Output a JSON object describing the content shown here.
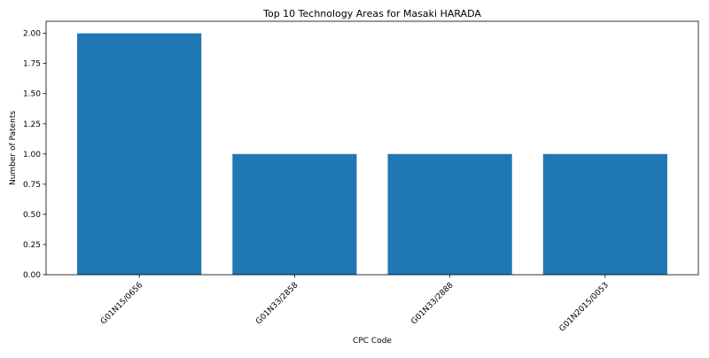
{
  "chart_data": {
    "type": "bar",
    "title": "Top 10 Technology Areas for Masaki HARADA",
    "xlabel": "CPC Code",
    "ylabel": "Number of Patents",
    "categories": [
      "G01N15/0656",
      "G01N33/2858",
      "G01N33/2888",
      "G01N2015/0053"
    ],
    "values": [
      2,
      1,
      1,
      1
    ],
    "ylim": [
      0,
      2.1
    ],
    "yticks": [
      "0.00",
      "0.25",
      "0.50",
      "0.75",
      "1.00",
      "1.25",
      "1.50",
      "1.75",
      "2.00"
    ],
    "grid": false,
    "bar_color": "#1f77b4"
  }
}
